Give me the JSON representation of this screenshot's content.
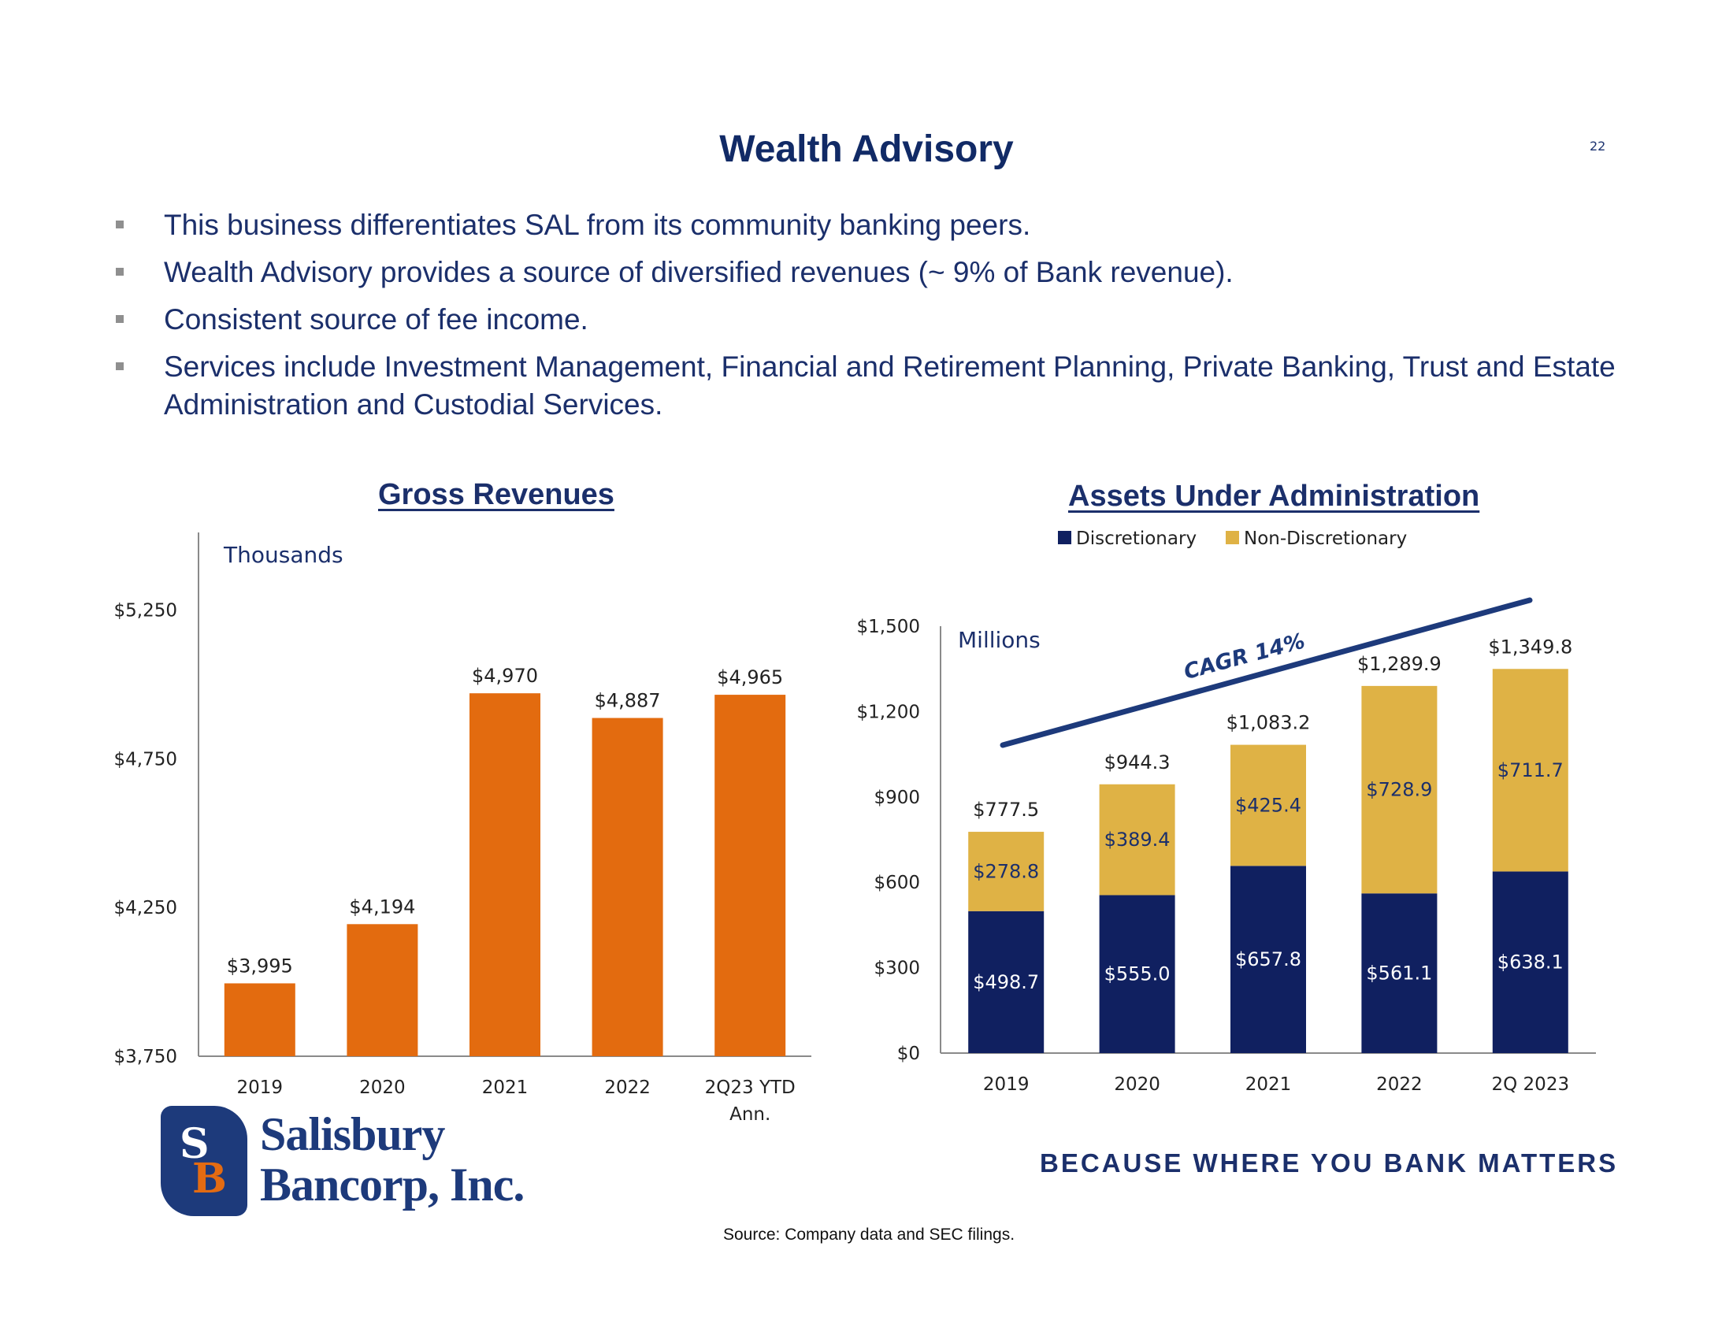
{
  "title": "Wealth Advisory",
  "page_number": "22",
  "bullets": [
    "This business differentiates SAL from its community banking peers.",
    "Wealth Advisory provides a source of diversified revenues (~ 9% of Bank revenue).",
    "Consistent source of fee income.",
    "Services include Investment Management, Financial and Retirement Planning, Private Banking, Trust and Estate Administration and Custodial Services."
  ],
  "chart_data": [
    {
      "type": "bar",
      "title": "Gross Revenues",
      "unit_label": "Thousands",
      "categories": [
        "2019",
        "2020",
        "2021",
        "2022",
        "2Q23 YTD Ann."
      ],
      "category_lines": [
        [
          "2019"
        ],
        [
          "2020"
        ],
        [
          "2021"
        ],
        [
          "2022"
        ],
        [
          "2Q23 YTD",
          "Ann."
        ]
      ],
      "values": [
        3995,
        4194,
        4970,
        4887,
        4965
      ],
      "data_labels": [
        "$3,995",
        "$4,194",
        "$4,970",
        "$4,887",
        "$4,965"
      ],
      "yticks": [
        3750,
        4250,
        4750,
        5250
      ],
      "ytick_labels": [
        "$3,750",
        "$4,250",
        "$4,750",
        "$5,250"
      ],
      "ylim": [
        3750,
        5500
      ],
      "color": "#e36b0f"
    },
    {
      "type": "bar",
      "stacked": true,
      "title": "Assets Under Administration",
      "unit_label": "Millions",
      "annotation": "CAGR 14%",
      "categories": [
        "2019",
        "2020",
        "2021",
        "2022",
        "2Q 2023"
      ],
      "series": [
        {
          "name": "Discretionary",
          "values": [
            498.7,
            555.0,
            657.8,
            561.1,
            638.1
          ],
          "labels": [
            "$498.7",
            "$555.0",
            "$657.8",
            "$561.1",
            "$638.1"
          ],
          "color": "#102060"
        },
        {
          "name": "Non-Discretionary",
          "values": [
            278.8,
            389.4,
            425.4,
            728.9,
            711.7
          ],
          "labels": [
            "$278.8",
            "$389.4",
            "$425.4",
            "$728.9",
            "$711.7"
          ],
          "color": "#dfb245"
        }
      ],
      "totals": [
        777.5,
        944.3,
        1083.2,
        1289.9,
        1349.8
      ],
      "total_labels": [
        "$777.5",
        "$944.3",
        "$1,083.2",
        "$1,289.9",
        "$1,349.8"
      ],
      "yticks": [
        0,
        300,
        600,
        900,
        1200,
        1500
      ],
      "ytick_labels": [
        "$0",
        "$300",
        "$600",
        "$900",
        "$1,200",
        "$1,500"
      ],
      "ylim": [
        0,
        1500
      ],
      "legend": "top"
    }
  ],
  "logo": {
    "line1": "Salisbury",
    "line2": "Bancorp, Inc.",
    "monogram_top": "S",
    "monogram_bottom": "B"
  },
  "tagline": "BECAUSE WHERE YOU BANK MATTERS",
  "source": "Source: Company data and SEC filings."
}
